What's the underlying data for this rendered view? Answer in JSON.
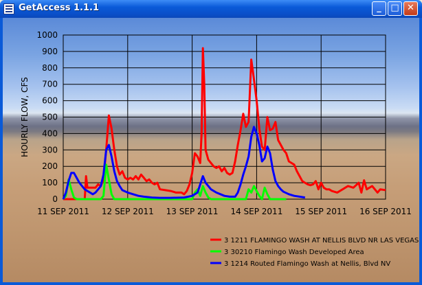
{
  "window": {
    "title": "GetAccess 1.1.1",
    "minimize_label": "_",
    "maximize_label": "□",
    "close_label": "✕"
  },
  "chart_data": {
    "type": "line",
    "ylabel": "HOURLY FLOW, CFS",
    "ylim": [
      0,
      1000
    ],
    "yticks": [
      0,
      100,
      200,
      300,
      400,
      500,
      600,
      700,
      800,
      900,
      1000
    ],
    "xlim": [
      0,
      120
    ],
    "xunit": "hours since first tick",
    "xticks": [
      {
        "x": 0,
        "label": "11 SEP 2011"
      },
      {
        "x": 24,
        "label": "12 SEP 2011"
      },
      {
        "x": 48,
        "label": "13 SEP 2011"
      },
      {
        "x": 72,
        "label": "14 SEP 2011"
      },
      {
        "x": 96,
        "label": "15 SEP 2011"
      },
      {
        "x": 120,
        "label": "16 SEP 2011"
      }
    ],
    "grid": true,
    "legend_position": "bottom-right",
    "series": [
      {
        "name": "3 1211 FLAMINGO WASH AT NELLIS BLVD NR LAS VEGAS",
        "color": "#ff0000",
        "points": [
          [
            0,
            0
          ],
          [
            8,
            0
          ],
          [
            8.5,
            140
          ],
          [
            9,
            70
          ],
          [
            12,
            70
          ],
          [
            13,
            90
          ],
          [
            14,
            80
          ],
          [
            15,
            120
          ],
          [
            16,
            300
          ],
          [
            17,
            510
          ],
          [
            18,
            430
          ],
          [
            19,
            300
          ],
          [
            20,
            200
          ],
          [
            21,
            150
          ],
          [
            22,
            170
          ],
          [
            23,
            130
          ],
          [
            24,
            120
          ],
          [
            25,
            130
          ],
          [
            26,
            120
          ],
          [
            27,
            140
          ],
          [
            28,
            120
          ],
          [
            29,
            150
          ],
          [
            30,
            130
          ],
          [
            31,
            110
          ],
          [
            32,
            120
          ],
          [
            33,
            100
          ],
          [
            34,
            90
          ],
          [
            35,
            100
          ],
          [
            36,
            60
          ],
          [
            38,
            55
          ],
          [
            40,
            50
          ],
          [
            42,
            40
          ],
          [
            44,
            40
          ],
          [
            45,
            30
          ],
          [
            46,
            50
          ],
          [
            47,
            90
          ],
          [
            48,
            160
          ],
          [
            49,
            280
          ],
          [
            50,
            260
          ],
          [
            51,
            220
          ],
          [
            51.5,
            400
          ],
          [
            52,
            920
          ],
          [
            52.5,
            700
          ],
          [
            53,
            300
          ],
          [
            54,
            240
          ],
          [
            55,
            220
          ],
          [
            56,
            200
          ],
          [
            57,
            190
          ],
          [
            58,
            200
          ],
          [
            59,
            170
          ],
          [
            60,
            190
          ],
          [
            61,
            160
          ],
          [
            62,
            150
          ],
          [
            63,
            160
          ],
          [
            64,
            230
          ],
          [
            65,
            330
          ],
          [
            66,
            420
          ],
          [
            67,
            520
          ],
          [
            68,
            440
          ],
          [
            69,
            470
          ],
          [
            70,
            850
          ],
          [
            71,
            730
          ],
          [
            72,
            600
          ],
          [
            73,
            430
          ],
          [
            74,
            320
          ],
          [
            75,
            300
          ],
          [
            76,
            500
          ],
          [
            77,
            420
          ],
          [
            78,
            430
          ],
          [
            79,
            470
          ],
          [
            80,
            360
          ],
          [
            81,
            330
          ],
          [
            82,
            300
          ],
          [
            83,
            280
          ],
          [
            84,
            230
          ],
          [
            85,
            220
          ],
          [
            86,
            210
          ],
          [
            87,
            170
          ],
          [
            88,
            140
          ],
          [
            89,
            110
          ],
          [
            90,
            100
          ],
          [
            91,
            90
          ],
          [
            92,
            85
          ],
          [
            93,
            90
          ],
          [
            94,
            110
          ],
          [
            95,
            60
          ],
          [
            96,
            100
          ],
          [
            97,
            70
          ],
          [
            98,
            60
          ],
          [
            99,
            60
          ],
          [
            100,
            50
          ],
          [
            102,
            40
          ],
          [
            104,
            60
          ],
          [
            106,
            80
          ],
          [
            108,
            70
          ],
          [
            110,
            100
          ],
          [
            111,
            40
          ],
          [
            112,
            115
          ],
          [
            113,
            60
          ],
          [
            115,
            80
          ],
          [
            116,
            60
          ],
          [
            117,
            40
          ],
          [
            118,
            60
          ],
          [
            120,
            55
          ]
        ]
      },
      {
        "name": "3 30210 Flamingo Wash Developed Area",
        "color": "#00ff00",
        "points": [
          [
            0,
            0
          ],
          [
            1,
            20
          ],
          [
            2,
            120
          ],
          [
            3,
            60
          ],
          [
            4,
            10
          ],
          [
            5,
            0
          ],
          [
            14,
            0
          ],
          [
            15,
            20
          ],
          [
            16,
            210
          ],
          [
            17,
            120
          ],
          [
            18,
            30
          ],
          [
            19,
            0
          ],
          [
            48,
            0
          ],
          [
            49,
            40
          ],
          [
            50,
            60
          ],
          [
            51,
            20
          ],
          [
            52,
            80
          ],
          [
            53,
            40
          ],
          [
            54,
            10
          ],
          [
            55,
            0
          ],
          [
            68,
            0
          ],
          [
            69,
            60
          ],
          [
            70,
            40
          ],
          [
            71,
            80
          ],
          [
            72,
            50
          ],
          [
            73,
            20
          ],
          [
            74,
            0
          ],
          [
            75,
            70
          ],
          [
            76,
            30
          ],
          [
            77,
            0
          ],
          [
            83,
            0
          ]
        ]
      },
      {
        "name": "3 1214 Routed Flamingo Wash at Nellis, Blvd NV",
        "color": "#0000ff",
        "points": [
          [
            0,
            0
          ],
          [
            1,
            40
          ],
          [
            2,
            110
          ],
          [
            3,
            160
          ],
          [
            4,
            160
          ],
          [
            5,
            130
          ],
          [
            6,
            100
          ],
          [
            7,
            80
          ],
          [
            8,
            60
          ],
          [
            9,
            50
          ],
          [
            10,
            40
          ],
          [
            11,
            30
          ],
          [
            12,
            40
          ],
          [
            13,
            60
          ],
          [
            14,
            80
          ],
          [
            15,
            150
          ],
          [
            16,
            300
          ],
          [
            17,
            330
          ],
          [
            18,
            260
          ],
          [
            19,
            170
          ],
          [
            20,
            110
          ],
          [
            21,
            80
          ],
          [
            22,
            55
          ],
          [
            24,
            40
          ],
          [
            26,
            30
          ],
          [
            28,
            20
          ],
          [
            30,
            15
          ],
          [
            33,
            10
          ],
          [
            36,
            8
          ],
          [
            40,
            8
          ],
          [
            45,
            10
          ],
          [
            48,
            20
          ],
          [
            50,
            40
          ],
          [
            51,
            90
          ],
          [
            52,
            140
          ],
          [
            53,
            100
          ],
          [
            54,
            80
          ],
          [
            55,
            60
          ],
          [
            57,
            40
          ],
          [
            60,
            20
          ],
          [
            62,
            15
          ],
          [
            64,
            15
          ],
          [
            65,
            40
          ],
          [
            66,
            90
          ],
          [
            67,
            150
          ],
          [
            68,
            200
          ],
          [
            69,
            260
          ],
          [
            70,
            380
          ],
          [
            71,
            440
          ],
          [
            72,
            400
          ],
          [
            73,
            330
          ],
          [
            74,
            230
          ],
          [
            75,
            250
          ],
          [
            76,
            320
          ],
          [
            77,
            280
          ],
          [
            78,
            180
          ],
          [
            79,
            110
          ],
          [
            80,
            80
          ],
          [
            81,
            60
          ],
          [
            82,
            45
          ],
          [
            84,
            30
          ],
          [
            86,
            20
          ],
          [
            88,
            15
          ],
          [
            90,
            10
          ]
        ]
      }
    ]
  }
}
